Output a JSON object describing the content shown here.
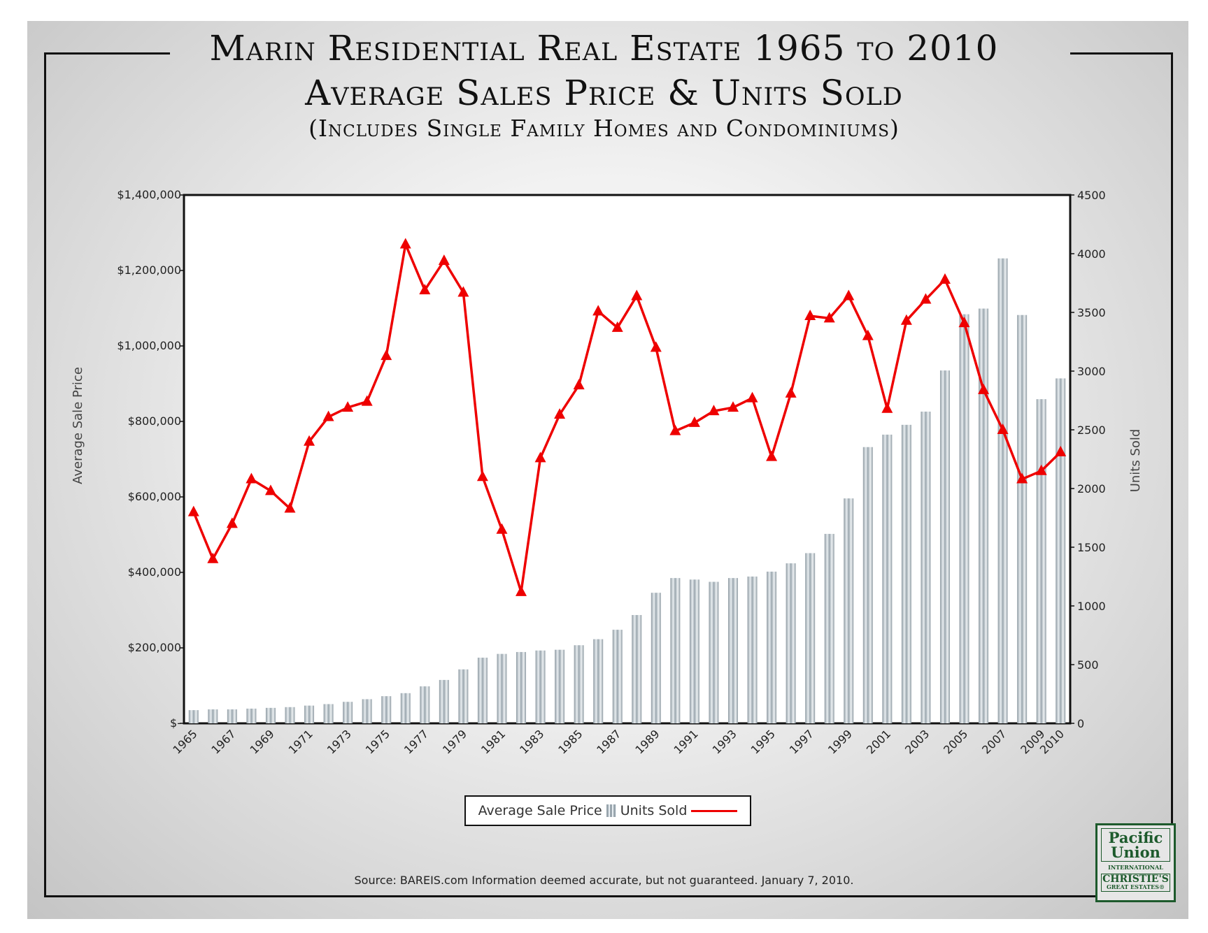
{
  "title": {
    "line1": "Marin Residential Real Estate 1965 to 2010",
    "line2": "Average Sales Price & Units Sold",
    "line3": "(Includes Single Family Homes and Condominiums)"
  },
  "source": "Source: BAREIS.com Information deemed accurate, but not guaranteed. January 7, 2010.",
  "logo": {
    "line1": "Pacific",
    "line2": "Union",
    "line3": "INTERNATIONAL",
    "line4": "CHRISTIE'S",
    "line5": "GREAT ESTATES®"
  },
  "legend": {
    "bar_label": "Average Sale Price",
    "line_label": "Units Sold",
    "placement": "bottom-center"
  },
  "chart_data": {
    "type": "bar+line",
    "ylabel": "Average Sale Price",
    "y2label": "Units Sold",
    "ylim": [
      0,
      1400000
    ],
    "y2lim": [
      0,
      4500
    ],
    "yticks": [
      "$-",
      "$200,000",
      "$400,000",
      "$600,000",
      "$800,000",
      "$1,000,000",
      "$1,200,000",
      "$1,400,000"
    ],
    "y2ticks": [
      "0",
      "500",
      "1000",
      "1500",
      "2000",
      "2500",
      "3000",
      "3500",
      "4000",
      "4500"
    ],
    "xtick_labels": [
      "1965",
      "1967",
      "1969",
      "1971",
      "1973",
      "1975",
      "1977",
      "1979",
      "1981",
      "1983",
      "1985",
      "1987",
      "1989",
      "1991",
      "1993",
      "1995",
      "1997",
      "1999",
      "2001",
      "2003",
      "2005",
      "2007",
      "2009",
      "2010"
    ],
    "grid": false,
    "colors": {
      "bars": "#a9b4bb",
      "line": "#ee0000"
    },
    "categories": [
      1965,
      1966,
      1967,
      1968,
      1969,
      1970,
      1971,
      1972,
      1973,
      1974,
      1975,
      1976,
      1977,
      1978,
      1979,
      1980,
      1981,
      1982,
      1983,
      1984,
      1985,
      1986,
      1987,
      1988,
      1989,
      1990,
      1991,
      1992,
      1993,
      1994,
      1995,
      1996,
      1997,
      1998,
      1999,
      2000,
      2001,
      2002,
      2003,
      2004,
      2005,
      2006,
      2007,
      2008,
      2009,
      2010
    ],
    "series": [
      {
        "name": "Average Sale Price",
        "type": "bar",
        "axis": "left",
        "values": [
          35000,
          37000,
          37000,
          39000,
          41000,
          43000,
          47000,
          51000,
          57000,
          64000,
          72000,
          80000,
          98000,
          115000,
          143000,
          174000,
          184000,
          189000,
          193000,
          195000,
          207000,
          223000,
          248000,
          287000,
          346000,
          385000,
          381000,
          375000,
          385000,
          389000,
          402000,
          424000,
          451000,
          502000,
          596000,
          732000,
          765000,
          791000,
          826000,
          935000,
          1084000,
          1099000,
          1232000,
          1082000,
          859000,
          914000
        ]
      },
      {
        "name": "Units Sold",
        "type": "line",
        "axis": "right",
        "marker": "triangle",
        "values": [
          1800,
          1400,
          1700,
          2080,
          1980,
          1830,
          2400,
          2610,
          2690,
          2740,
          3130,
          4080,
          3690,
          3940,
          3670,
          2100,
          1650,
          1120,
          2260,
          2630,
          2880,
          3510,
          3370,
          3640,
          3200,
          2490,
          2560,
          2660,
          2690,
          2770,
          2270,
          2810,
          3470,
          3450,
          3640,
          3300,
          2680,
          3430,
          3610,
          3780,
          3410,
          2840,
          2500,
          2080,
          2150,
          2310
        ]
      }
    ]
  }
}
